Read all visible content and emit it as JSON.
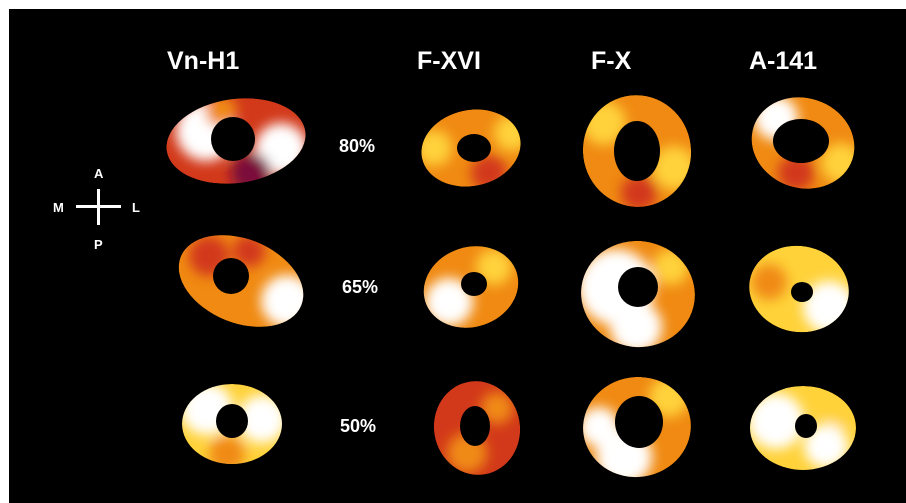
{
  "columns": [
    "Vn-H1",
    "F-XVI",
    "F-X",
    "A-141"
  ],
  "rows": [
    "80%",
    "65%",
    "50%"
  ],
  "orientation": {
    "anterior": "A",
    "posterior": "P",
    "medial": "M",
    "lateral": "L"
  },
  "colors": {
    "background": "#000000",
    "text": "#ffffff",
    "heat_low": "#7a0f3a",
    "heat_mid_low": "#d2391a",
    "heat_mid": "#f08a12",
    "heat_high": "#ffd23a",
    "heat_max": "#ffffff"
  }
}
